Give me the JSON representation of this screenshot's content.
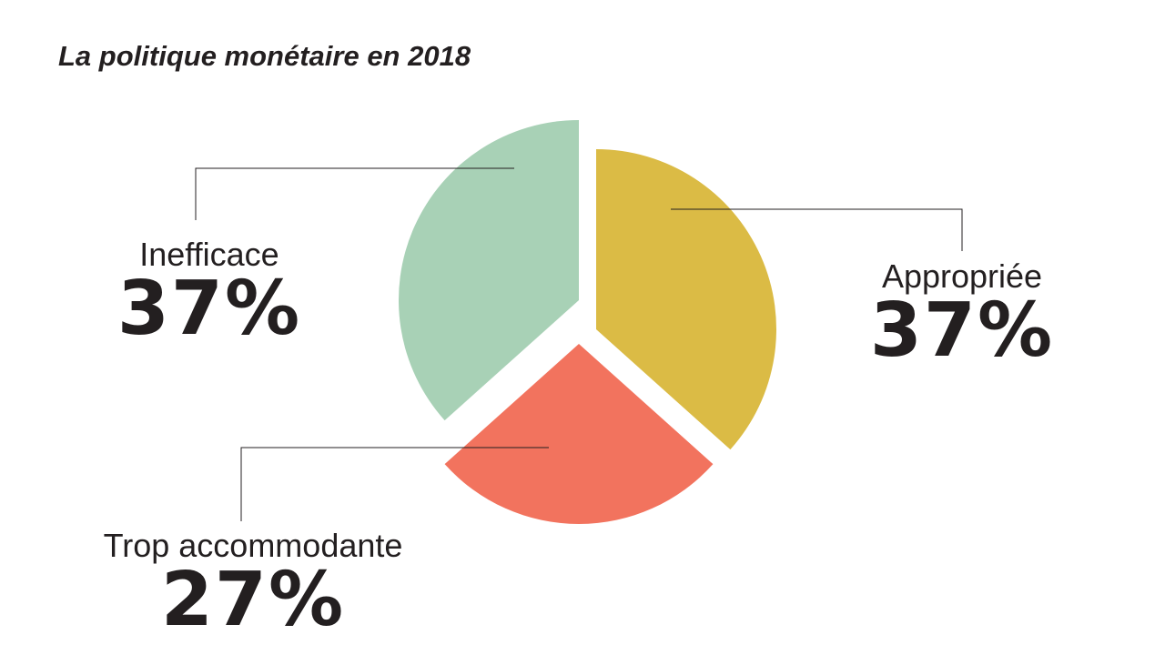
{
  "chart_data": {
    "type": "pie",
    "title": "La politique monétaire en 2018",
    "slices": [
      {
        "label": "Appropriée",
        "value": 37,
        "display": "37%",
        "color": "#dbbb45"
      },
      {
        "label": "Trop accommodante",
        "value": 27,
        "display": "27%",
        "color": "#f2735e"
      },
      {
        "label": "Inefficace",
        "value": 37,
        "display": "37%",
        "color": "#a8d1b6"
      }
    ],
    "exploded": true
  }
}
